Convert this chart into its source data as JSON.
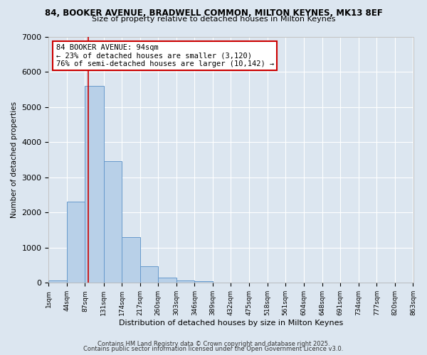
{
  "title1": "84, BOOKER AVENUE, BRADWELL COMMON, MILTON KEYNES, MK13 8EF",
  "title2": "Size of property relative to detached houses in Milton Keynes",
  "xlabel": "Distribution of detached houses by size in Milton Keynes",
  "ylabel": "Number of detached properties",
  "bin_edges": [
    1,
    44,
    87,
    131,
    174,
    217,
    260,
    303,
    346,
    389,
    432,
    475,
    518,
    561,
    604,
    648,
    691,
    734,
    777,
    820,
    863
  ],
  "bin_heights": [
    70,
    2300,
    5600,
    3450,
    1300,
    480,
    150,
    70,
    50,
    0,
    0,
    0,
    0,
    0,
    0,
    0,
    0,
    0,
    0,
    0
  ],
  "bar_color": "#b8d0e8",
  "bar_edge_color": "#6699cc",
  "property_size": 94,
  "property_line_color": "#cc0000",
  "annotation_line1": "84 BOOKER AVENUE: 94sqm",
  "annotation_line2": "← 23% of detached houses are smaller (3,120)",
  "annotation_line3": "76% of semi-detached houses are larger (10,142) →",
  "annotation_box_color": "#ffffff",
  "annotation_box_edge_color": "#cc0000",
  "background_color": "#dce6f0",
  "grid_color": "#ffffff",
  "ylim": [
    0,
    7000
  ],
  "tick_labels": [
    "1sqm",
    "44sqm",
    "87sqm",
    "131sqm",
    "174sqm",
    "217sqm",
    "260sqm",
    "303sqm",
    "346sqm",
    "389sqm",
    "432sqm",
    "475sqm",
    "518sqm",
    "561sqm",
    "604sqm",
    "648sqm",
    "691sqm",
    "734sqm",
    "777sqm",
    "820sqm",
    "863sqm"
  ],
  "footer1": "Contains HM Land Registry data © Crown copyright and database right 2025.",
  "footer2": "Contains public sector information licensed under the Open Government Licence v3.0."
}
